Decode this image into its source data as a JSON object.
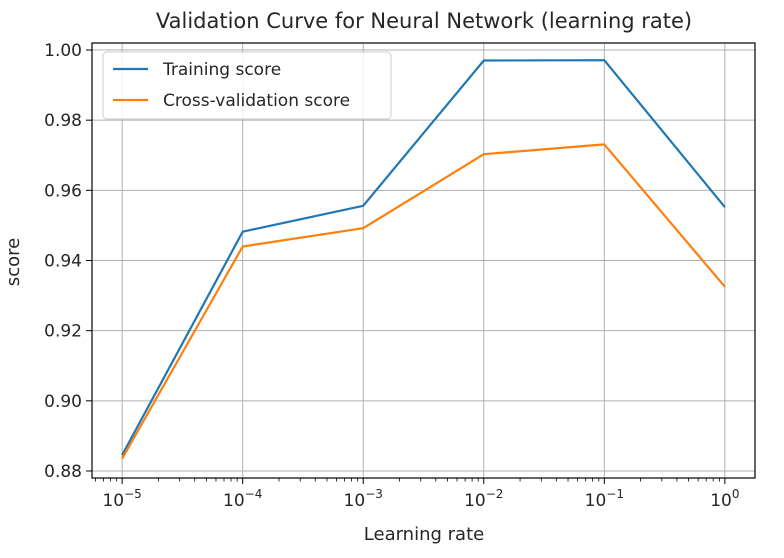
{
  "chart_data": {
    "type": "line",
    "title": "Validation Curve for Neural Network (learning rate)",
    "xlabel": "Learning rate",
    "ylabel": "score",
    "x_scale": "log",
    "x": [
      1e-05,
      0.0001,
      0.001,
      0.01,
      0.1,
      1
    ],
    "x_tick_labels": [
      {
        "base": "10",
        "exp": "−5"
      },
      {
        "base": "10",
        "exp": "−4"
      },
      {
        "base": "10",
        "exp": "−3"
      },
      {
        "base": "10",
        "exp": "−2"
      },
      {
        "base": "10",
        "exp": "−1"
      },
      {
        "base": "10",
        "exp": "0"
      }
    ],
    "y_ticks": [
      0.88,
      0.9,
      0.92,
      0.94,
      0.96,
      0.98,
      1.0
    ],
    "y_tick_labels": [
      "0.88",
      "0.90",
      "0.92",
      "0.94",
      "0.96",
      "0.98",
      "1.00"
    ],
    "ylim": [
      0.878,
      1.002
    ],
    "grid": true,
    "legend_position": "top-left",
    "series": [
      {
        "name": "Training score",
        "color": "#1f77b4",
        "values": [
          0.8845,
          0.9482,
          0.9556,
          0.997,
          0.9971,
          0.9552
        ]
      },
      {
        "name": "Cross-validation score",
        "color": "#ff7f0e",
        "values": [
          0.8835,
          0.944,
          0.9492,
          0.9703,
          0.9731,
          0.9325
        ]
      }
    ]
  }
}
